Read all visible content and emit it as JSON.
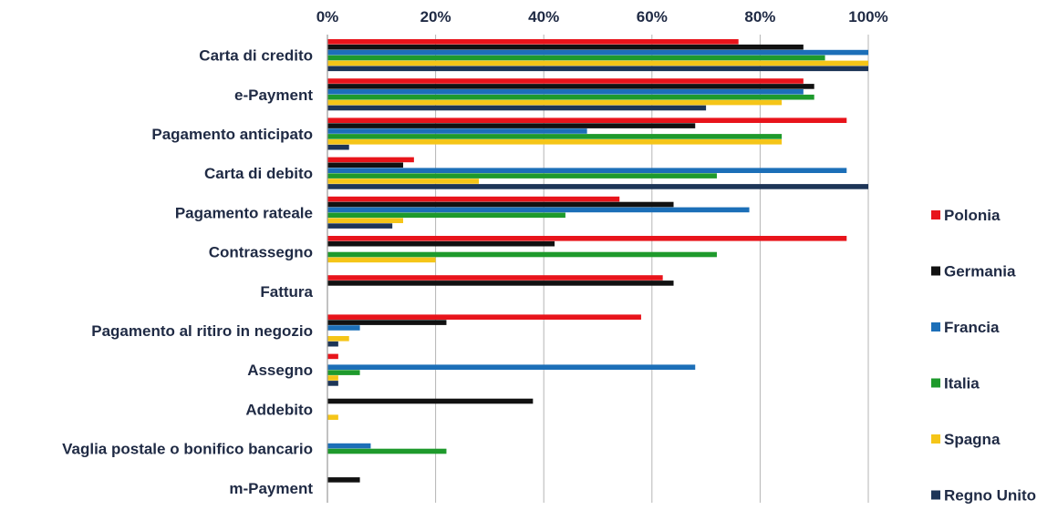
{
  "chart_data": {
    "type": "bar",
    "orientation": "horizontal",
    "xlim": [
      0,
      100
    ],
    "x_ticks": [
      "0%",
      "20%",
      "40%",
      "60%",
      "80%",
      "100%"
    ],
    "x_tick_values": [
      0,
      20,
      40,
      60,
      80,
      100
    ],
    "grid": true,
    "legend_position": "right",
    "categories": [
      "Carta di credito",
      "e-Payment",
      "Pagamento anticipato",
      "Carta di debito",
      "Pagamento rateale",
      "Contrassegno",
      "Fattura",
      "Pagamento al ritiro in negozio",
      "Assegno",
      "Addebito",
      "Vaglia postale o bonifico bancario",
      "m-Payment"
    ],
    "series": [
      {
        "name": "Polonia",
        "color": "#e8141b",
        "values": [
          76,
          88,
          96,
          16,
          54,
          96,
          62,
          58,
          2,
          0,
          0,
          0
        ]
      },
      {
        "name": "Germania",
        "color": "#111111",
        "values": [
          88,
          90,
          68,
          14,
          64,
          42,
          64,
          22,
          0,
          38,
          0,
          6
        ]
      },
      {
        "name": "Francia",
        "color": "#1c6fb8",
        "values": [
          100,
          88,
          48,
          96,
          78,
          0,
          0,
          6,
          68,
          0,
          8,
          0
        ]
      },
      {
        "name": "Italia",
        "color": "#1e9a2c",
        "values": [
          92,
          90,
          84,
          72,
          44,
          72,
          0,
          0,
          6,
          0,
          22,
          0
        ]
      },
      {
        "name": "Spagna",
        "color": "#f5c518",
        "values": [
          100,
          84,
          84,
          28,
          14,
          20,
          0,
          4,
          2,
          2,
          0,
          0
        ]
      },
      {
        "name": "Regno Unito",
        "color": "#1d3557",
        "values": [
          100,
          70,
          4,
          100,
          12,
          0,
          0,
          2,
          2,
          0,
          0,
          0
        ]
      }
    ]
  }
}
